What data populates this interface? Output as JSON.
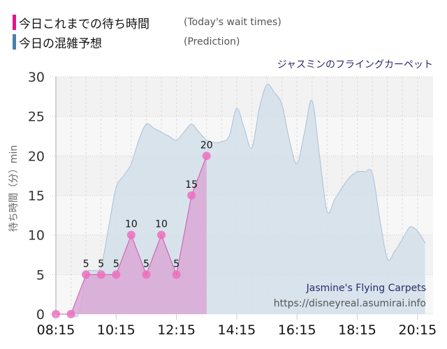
{
  "legend": {
    "items": [
      {
        "label_jp": "今日これまでの待ち時間",
        "label_en": "(Today's wait times)",
        "color": "#e0188a"
      },
      {
        "label_jp": "今日の混雑予想",
        "label_en": "(Prediction)",
        "color": "#4a7fb0"
      }
    ]
  },
  "ride_title": "ジャスミンのフライングカーペット",
  "watermark": {
    "name": "Jasmine's Flying Carpets",
    "url": "https://disneyreal.asumirai.info"
  },
  "colors": {
    "actual_fill": "#d9a8d6",
    "actual_line": "#d455a8",
    "actual_marker": "#ee6fbf",
    "prediction_fill": "#d4e0ea",
    "prediction_line": "#a9c1d6",
    "title_color": "#2a2a6e"
  },
  "chart_data": {
    "type": "area",
    "title": "ジャスミンのフライングカーペット",
    "xlabel": "",
    "ylabel": "待ち時間（分）min",
    "ylim": [
      0,
      30
    ],
    "yticks": [
      0,
      5,
      10,
      15,
      20,
      25,
      30
    ],
    "xticks": [
      "08:15",
      "10:15",
      "12:15",
      "14:15",
      "16:15",
      "18:15",
      "20:15"
    ],
    "grid": true,
    "legend_position": "top-left",
    "series": [
      {
        "name": "今日これまでの待ち時間 (Today's wait times)",
        "type": "area",
        "x": [
          "08:15",
          "08:45",
          "09:15",
          "09:45",
          "10:15",
          "10:45",
          "11:15",
          "11:45",
          "12:15",
          "12:45",
          "13:15"
        ],
        "values": [
          0,
          0,
          5,
          5,
          5,
          10,
          5,
          10,
          5,
          15,
          20
        ],
        "data_labels": [
          null,
          null,
          "5",
          "5",
          "5",
          "10",
          "5",
          "10",
          "5",
          "15",
          "20"
        ]
      },
      {
        "name": "今日の混雑予想 (Prediction)",
        "type": "area",
        "x": [
          "08:15",
          "08:30",
          "08:45",
          "09:00",
          "09:15",
          "09:30",
          "09:45",
          "10:00",
          "10:15",
          "10:30",
          "10:45",
          "11:00",
          "11:15",
          "11:30",
          "11:45",
          "12:00",
          "12:15",
          "12:30",
          "12:45",
          "13:00",
          "13:15",
          "13:30",
          "13:45",
          "14:00",
          "14:15",
          "14:30",
          "14:45",
          "15:00",
          "15:15",
          "15:30",
          "15:45",
          "16:00",
          "16:15",
          "16:30",
          "16:45",
          "17:00",
          "17:15",
          "17:30",
          "17:45",
          "18:00",
          "18:15",
          "18:30",
          "18:45",
          "19:00",
          "19:15",
          "19:30",
          "19:45",
          "20:00",
          "20:15",
          "20:30"
        ],
        "values": [
          0,
          0,
          0,
          0,
          5,
          5.5,
          6,
          11,
          16,
          17.5,
          19,
          22,
          24,
          23.5,
          23,
          22.5,
          22,
          23,
          24,
          23,
          22,
          21.7,
          21.8,
          22.5,
          26,
          23.5,
          21,
          26,
          29,
          28,
          26.5,
          22,
          19,
          23,
          27,
          20,
          13,
          14.5,
          16,
          17.3,
          18,
          18,
          17.8,
          12,
          7,
          8,
          9.5,
          11,
          10.5,
          9
        ]
      }
    ]
  }
}
